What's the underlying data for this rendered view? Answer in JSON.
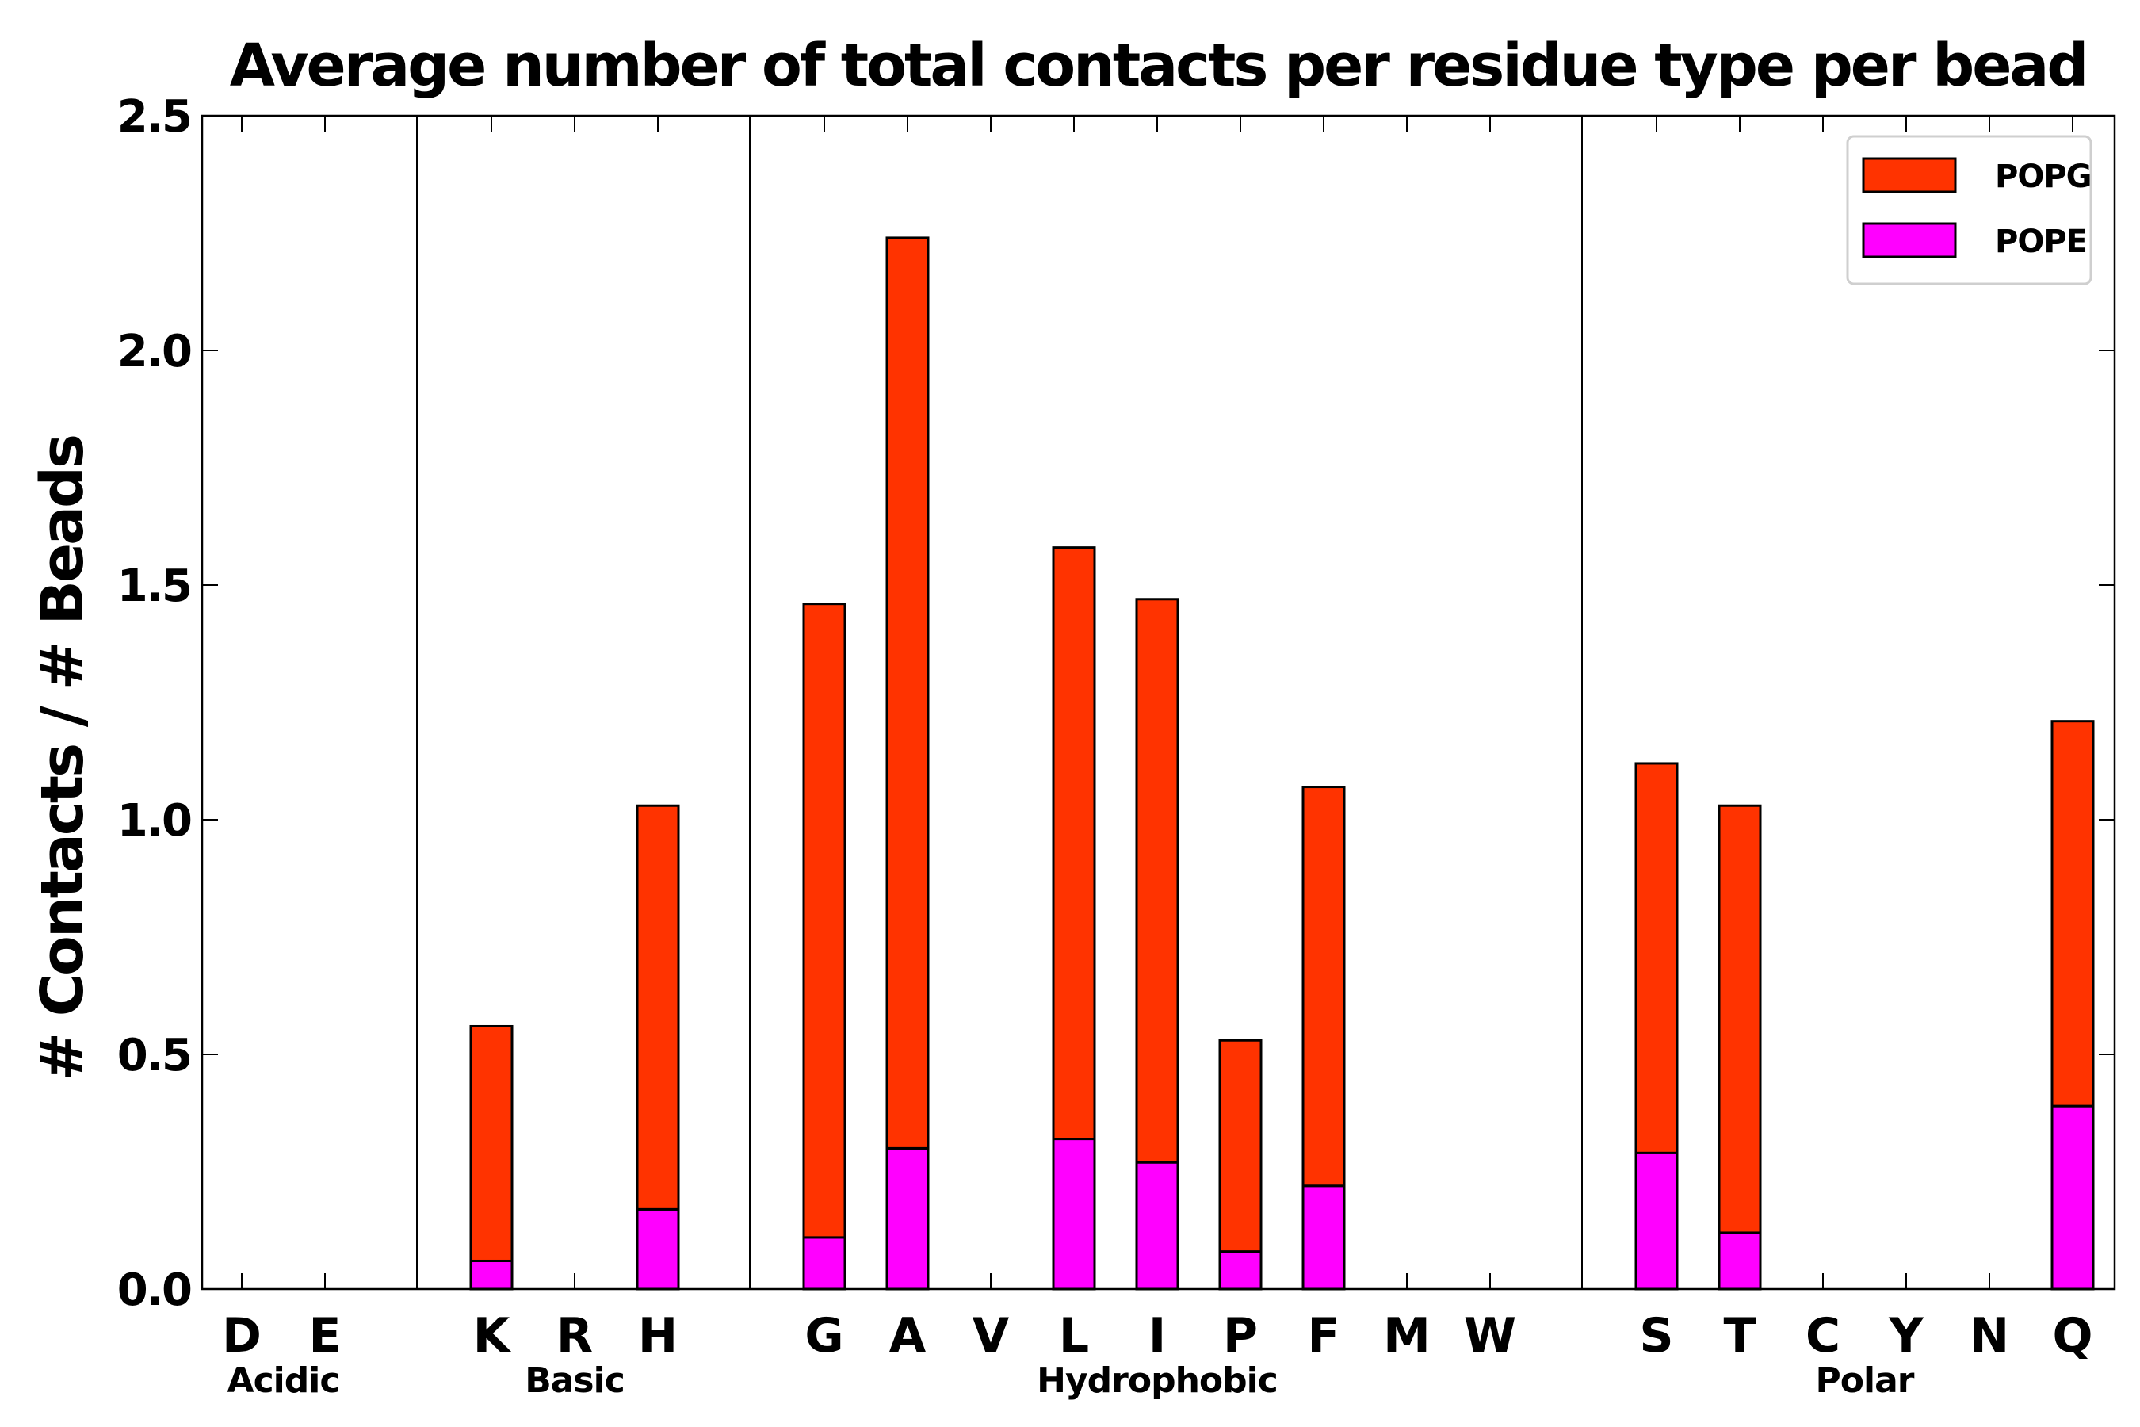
{
  "chart_data": {
    "type": "bar",
    "stacked": true,
    "title": "Average number of total contacts per residue type per bead",
    "xlabel": "",
    "ylabel": "# Contacts / # Beads",
    "ylim": [
      0,
      2.5
    ],
    "yticks": [
      "0.0",
      "0.5",
      "1.0",
      "1.5",
      "2.0",
      "2.5"
    ],
    "slots": [
      "D",
      "E",
      "",
      "K",
      "R",
      "H",
      "",
      "G",
      "A",
      "V",
      "L",
      "I",
      "P",
      "F",
      "M",
      "W",
      "",
      "S",
      "T",
      "C",
      "Y",
      "N",
      "Q"
    ],
    "categories": [
      "D",
      "E",
      "K",
      "R",
      "H",
      "G",
      "A",
      "V",
      "L",
      "I",
      "P",
      "F",
      "M",
      "W",
      "S",
      "T",
      "C",
      "Y",
      "N",
      "Q"
    ],
    "series": [
      {
        "name": "POPE",
        "color": "#ff00ff",
        "values": [
          0,
          0,
          0.06,
          0,
          0.17,
          0.11,
          0.3,
          0,
          0.32,
          0.27,
          0.08,
          0.22,
          0,
          0,
          0.29,
          0.12,
          0,
          0,
          0,
          0.39
        ]
      },
      {
        "name": "POPG",
        "color": "#ff3300",
        "values": [
          0,
          0,
          0.5,
          0,
          0.86,
          1.35,
          1.94,
          0,
          1.26,
          1.2,
          0.45,
          0.85,
          0,
          0,
          0.83,
          0.91,
          0,
          0,
          0,
          0.82
        ]
      }
    ],
    "legend_order": [
      "POPG",
      "POPE"
    ],
    "legend": "top-right",
    "groups": [
      {
        "label": "Acidic",
        "first": "D",
        "last": "E"
      },
      {
        "label": "Basic",
        "first": "K",
        "last": "H"
      },
      {
        "label": "Hydrophobic",
        "first": "G",
        "last": "W"
      },
      {
        "label": "Polar",
        "first": "S",
        "last": "Q"
      }
    ],
    "grid": false
  }
}
